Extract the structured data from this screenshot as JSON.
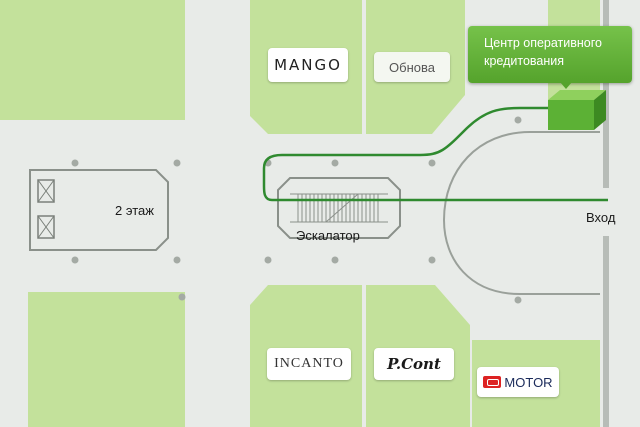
{
  "callout": {
    "text": "Центр оперативного кредитования"
  },
  "labels": {
    "floor2": "2 этаж",
    "escalator": "Эскалатор",
    "entrance": "Вход"
  },
  "stores": {
    "mango": "MANGO",
    "obnova": "Обнова",
    "incanto": "INCANTO",
    "pcont": "P.Cont",
    "motor": "MOTOR"
  },
  "colors": {
    "floor": "#e8ebe8",
    "store_block": "#c3e19b",
    "route": "#2f8a2f",
    "destination": "#5cb135",
    "outline": "#9aa09a"
  }
}
